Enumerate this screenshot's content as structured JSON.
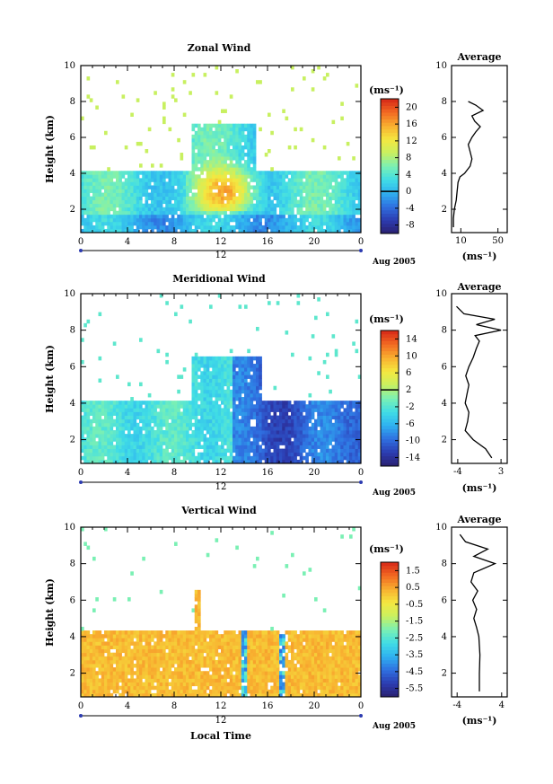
{
  "chart_data": [
    {
      "type": "heatmap",
      "title": "Zonal Wind",
      "ylabel": "Height (km)",
      "xlabel": "",
      "x_ticks": [
        "0",
        "4",
        "8",
        "12",
        "16",
        "20",
        "0"
      ],
      "y_ticks": [
        "2",
        "4",
        "6",
        "8",
        "10"
      ],
      "xlim": [
        0,
        24
      ],
      "ylim": [
        0.7,
        10
      ],
      "date_center": "12",
      "date_right": "Aug 2005",
      "colorbar": {
        "unit": "(ms⁻¹)",
        "ticks": [
          "-8",
          "-4",
          "0",
          "4",
          "8",
          "12",
          "16",
          "20"
        ],
        "range": [
          -10,
          22
        ]
      },
      "profile": {
        "title": "Average",
        "xlabel": "(ms⁻¹)",
        "x_ticks": [
          "10",
          "50"
        ],
        "xlim": [
          0,
          60
        ],
        "points": [
          [
            2,
            1.0
          ],
          [
            2,
            1.5
          ],
          [
            3,
            2.0
          ],
          [
            5,
            2.5
          ],
          [
            6,
            3.0
          ],
          [
            7,
            3.5
          ],
          [
            9,
            3.8
          ],
          [
            14,
            4.0
          ],
          [
            20,
            4.4
          ],
          [
            22,
            4.8
          ],
          [
            20,
            5.2
          ],
          [
            18,
            5.6
          ],
          [
            22,
            6.0
          ],
          [
            26,
            6.3
          ],
          [
            31,
            6.6
          ],
          [
            25,
            6.9
          ],
          [
            22,
            7.2
          ],
          [
            34,
            7.5
          ],
          [
            26,
            7.8
          ],
          [
            18,
            8.0
          ]
        ]
      }
    },
    {
      "type": "heatmap",
      "title": "Meridional Wind",
      "ylabel": "Height (km)",
      "xlabel": "",
      "x_ticks": [
        "0",
        "4",
        "8",
        "12",
        "16",
        "20",
        "0"
      ],
      "y_ticks": [
        "2",
        "4",
        "6",
        "8",
        "10"
      ],
      "xlim": [
        0,
        24
      ],
      "ylim": [
        0.7,
        10
      ],
      "date_center": "12",
      "date_right": "Aug 2005",
      "colorbar": {
        "unit": "(ms⁻¹)",
        "ticks": [
          "-14",
          "-10",
          "-6",
          "-2",
          "2",
          "6",
          "10",
          "14"
        ],
        "range": [
          -16,
          16
        ]
      },
      "profile": {
        "title": "Average",
        "xlabel": "(ms⁻¹)",
        "x_ticks": [
          "-4",
          "3"
        ],
        "xlim": [
          -5,
          4
        ],
        "points": [
          [
            1.5,
            1.0
          ],
          [
            0.5,
            1.5
          ],
          [
            -1.5,
            2.0
          ],
          [
            -2.8,
            2.5
          ],
          [
            -2.4,
            3.0
          ],
          [
            -2.2,
            3.5
          ],
          [
            -2.8,
            4.0
          ],
          [
            -2.5,
            4.5
          ],
          [
            -2.2,
            5.0
          ],
          [
            -2.7,
            5.5
          ],
          [
            -2.2,
            6.0
          ],
          [
            -1.5,
            6.5
          ],
          [
            -1.0,
            7.0
          ],
          [
            -0.5,
            7.4
          ],
          [
            -1.2,
            7.7
          ],
          [
            3.0,
            8.0
          ],
          [
            -1.0,
            8.3
          ],
          [
            2.0,
            8.6
          ],
          [
            -3.0,
            8.9
          ],
          [
            -4.2,
            9.3
          ]
        ]
      }
    },
    {
      "type": "heatmap",
      "title": "Vertical Wind",
      "ylabel": "Height (km)",
      "xlabel": "Local Time",
      "x_ticks": [
        "0",
        "4",
        "8",
        "12",
        "16",
        "20",
        "0"
      ],
      "y_ticks": [
        "2",
        "4",
        "6",
        "8",
        "10"
      ],
      "xlim": [
        0,
        24
      ],
      "ylim": [
        0.7,
        10
      ],
      "date_center": "12",
      "date_right": "Aug 2005",
      "colorbar": {
        "unit": "(ms⁻¹)",
        "ticks": [
          "-5.5",
          "-4.5",
          "-3.5",
          "-2.5",
          "-1.5",
          "-0.5",
          "0.5",
          "1.5"
        ],
        "range": [
          -6,
          2
        ]
      },
      "profile": {
        "title": "Average",
        "xlabel": "(ms⁻¹)",
        "x_ticks": [
          "-4",
          "4"
        ],
        "xlim": [
          -5,
          5
        ],
        "points": [
          [
            0.0,
            1.0
          ],
          [
            0.0,
            2.0
          ],
          [
            0.1,
            3.0
          ],
          [
            -0.1,
            4.0
          ],
          [
            -0.5,
            4.5
          ],
          [
            -1.0,
            5.0
          ],
          [
            -0.5,
            5.5
          ],
          [
            -1.2,
            6.0
          ],
          [
            -0.3,
            6.5
          ],
          [
            -1.5,
            7.0
          ],
          [
            -1.0,
            7.5
          ],
          [
            2.8,
            8.0
          ],
          [
            -1.0,
            8.4
          ],
          [
            1.5,
            8.8
          ],
          [
            -2.5,
            9.2
          ],
          [
            -3.5,
            9.6
          ]
        ]
      }
    }
  ]
}
